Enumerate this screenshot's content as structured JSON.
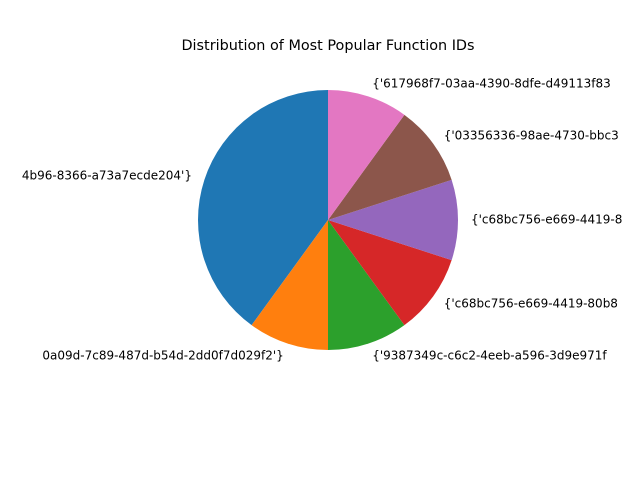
{
  "chart_data": {
    "type": "pie",
    "title": "Distribution of Most Popular Function IDs",
    "start_angle_deg": 90,
    "direction": "counterclockwise",
    "slices": [
      {
        "label": "4b96-8366-a73a7ecde204'}",
        "value": 40,
        "color": "#1f77b4"
      },
      {
        "label": "0a09d-7c89-487d-b54d-2dd0f7d029f2'}",
        "value": 10,
        "color": "#ff7f0e"
      },
      {
        "label": "{'9387349c-c6c2-4eeb-a596-3d9e971f",
        "value": 10,
        "color": "#2ca02c"
      },
      {
        "label": "{'c68bc756-e669-4419-80b8",
        "value": 10,
        "color": "#d62728"
      },
      {
        "label": "{'c68bc756-e669-4419-8",
        "value": 10,
        "color": "#9467bd"
      },
      {
        "label": "{'03356336-98ae-4730-bbc3",
        "value": 10,
        "color": "#8c564b"
      },
      {
        "label": "{'617968f7-03aa-4390-8dfe-d49113f83",
        "value": 10,
        "color": "#e377c2"
      }
    ]
  }
}
